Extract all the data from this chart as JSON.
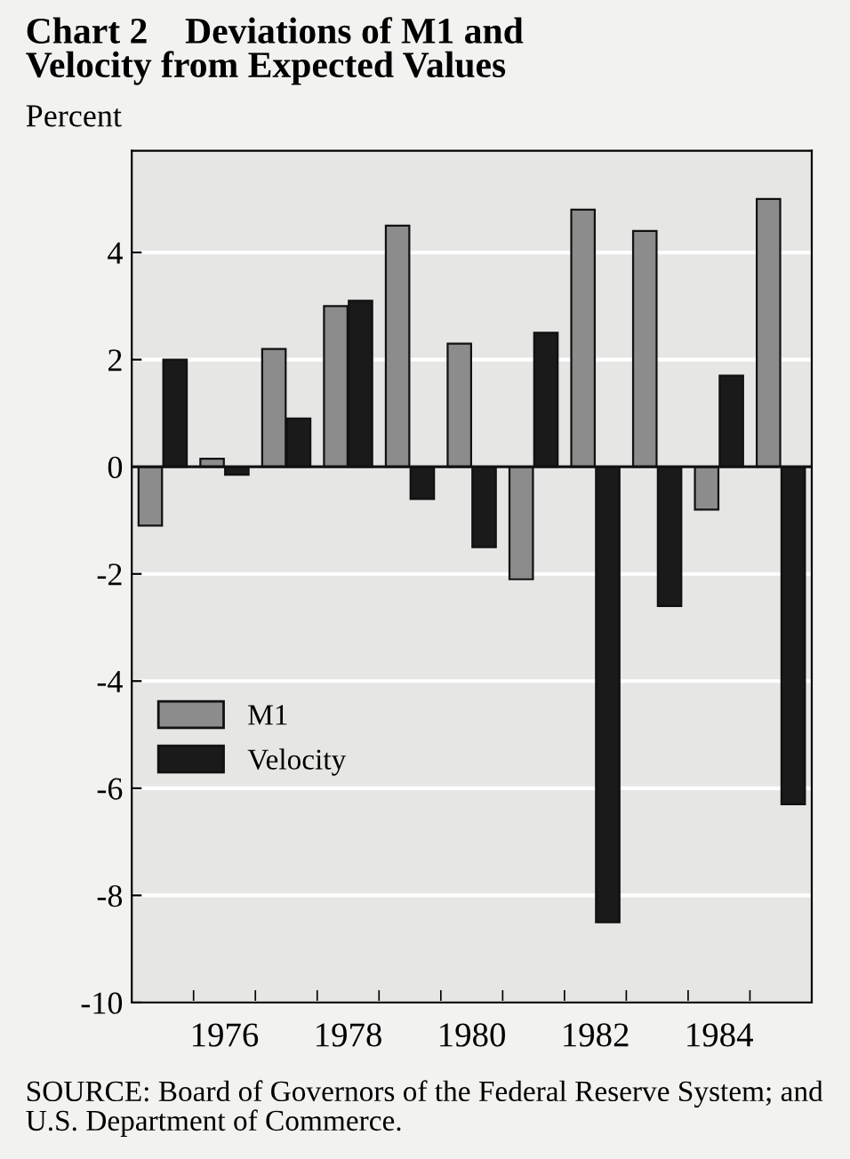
{
  "chart_data": {
    "type": "bar",
    "title": "Chart 2    Deviations of M1 and\nVelocity from Expected Values",
    "ylabel": "Percent",
    "categories": [
      null,
      "1976",
      null,
      "1978",
      null,
      "1980",
      null,
      "1982",
      null,
      "1984",
      null
    ],
    "series": [
      {
        "name": "M1",
        "color": "#8c8c8c",
        "values": [
          -1.1,
          0.15,
          2.2,
          3.0,
          4.5,
          2.3,
          -2.1,
          4.8,
          4.4,
          -0.8,
          5.0
        ]
      },
      {
        "name": "Velocity",
        "color": "#1a1a1a",
        "values": [
          2.0,
          -0.15,
          0.9,
          3.1,
          -0.6,
          -1.5,
          2.5,
          -8.5,
          -2.6,
          1.7,
          -6.3
        ]
      }
    ],
    "ylim": [
      -10,
      5.9
    ],
    "yticks": [
      -10,
      -8,
      -6,
      -4,
      -2,
      0,
      2,
      4
    ],
    "grid": "y",
    "legend": "center left",
    "annotations": [
      "SOURCE: Board of Governors of the Federal Reserve System; and U.S. Department of Commerce."
    ]
  }
}
